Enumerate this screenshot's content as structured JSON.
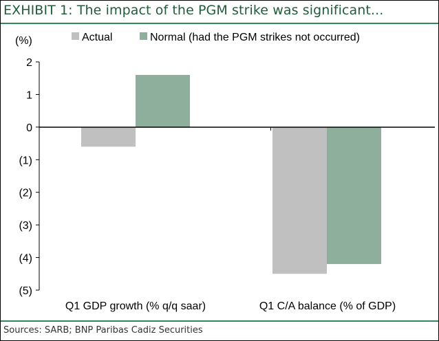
{
  "title": "EXHIBIT 1:  The impact of the PGM strike was significant...",
  "source": "Sources: SARB; BNP Paribas Cadiz Securities",
  "colors": {
    "accent": "#2e8b57",
    "actual": "#c0c0c0",
    "normal": "#8faf9d",
    "title_text": "#1f5c3a"
  },
  "chart_data": {
    "type": "bar",
    "y_unit_label": "(%)",
    "categories": [
      "Q1 GDP growth (% q/q saar)",
      "Q1 C/A balance (% of GDP)"
    ],
    "series": [
      {
        "name": "Actual",
        "values": [
          -0.6,
          -4.5
        ]
      },
      {
        "name": "Normal (had the PGM strikes not occurred)",
        "values": [
          1.6,
          -4.2
        ]
      }
    ],
    "ylim": [
      -5,
      2
    ],
    "yticks": [
      2,
      1,
      0,
      -1,
      -2,
      -3,
      -4,
      -5
    ],
    "ytick_labels": [
      "2",
      "1",
      "0",
      "(1)",
      "(2)",
      "(3)",
      "(4)",
      "(5)"
    ],
    "legend_position": "top",
    "grid": false
  }
}
